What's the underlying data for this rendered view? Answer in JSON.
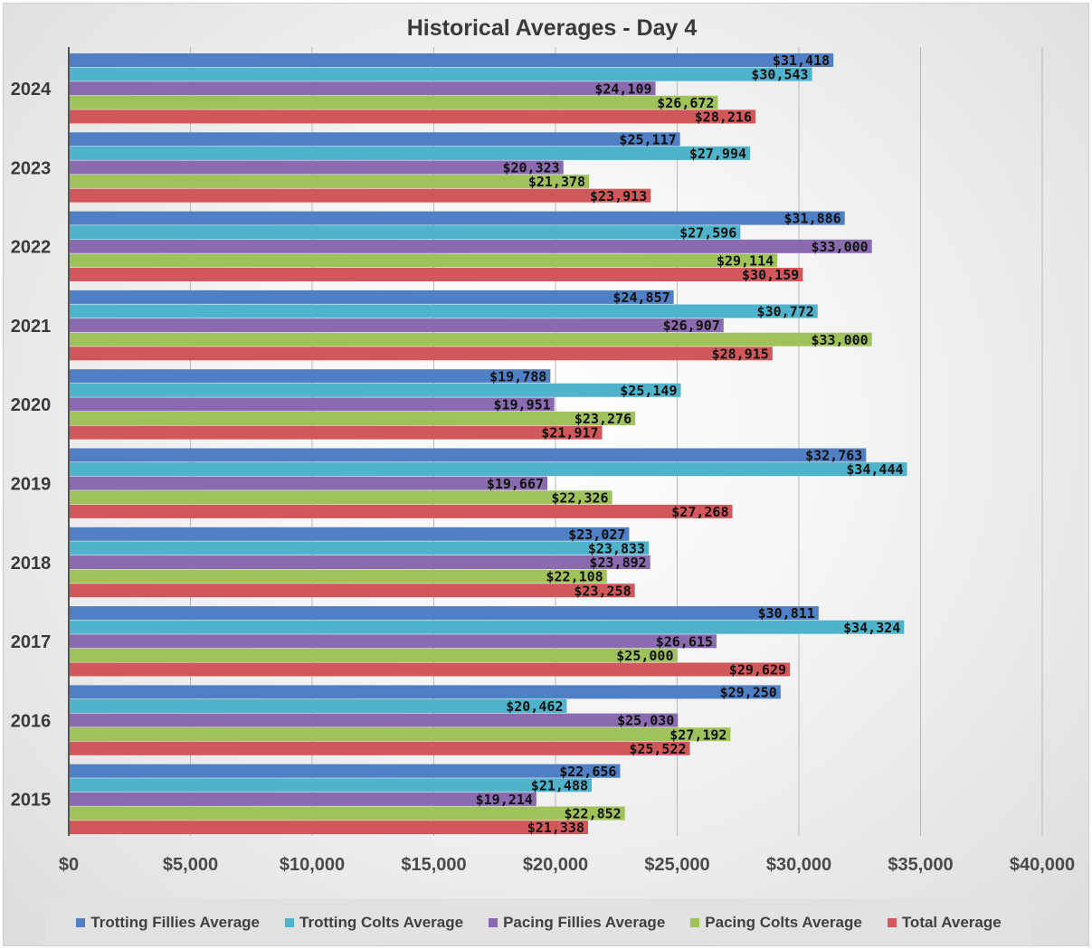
{
  "chart_data": {
    "type": "bar",
    "orientation": "horizontal",
    "title": "Historical Averages - Day 4",
    "categories": [
      "2024",
      "2023",
      "2022",
      "2021",
      "2020",
      "2019",
      "2018",
      "2017",
      "2016",
      "2015"
    ],
    "series": [
      {
        "name": "Trotting Fillies Average",
        "color": "#4f7fc4",
        "values": [
          31418,
          25117,
          31886,
          24857,
          19788,
          32763,
          23027,
          30811,
          29250,
          22656
        ],
        "labels": [
          "$31,418",
          "$25,117",
          "$31,886",
          "$24,857",
          "$19,788",
          "$32,763",
          "$23,027",
          "$30,811",
          "$29,250",
          "$22,656"
        ]
      },
      {
        "name": "Trotting Colts Average",
        "color": "#4fb3cc",
        "values": [
          30543,
          27994,
          27596,
          30772,
          25149,
          34444,
          23833,
          34324,
          20462,
          21488
        ],
        "labels": [
          "$30,543",
          "$27,994",
          "$27,596",
          "$30,772",
          "$25,149",
          "$34,444",
          "$23,833",
          "$34,324",
          "$20,462",
          "$21,488"
        ]
      },
      {
        "name": "Pacing Fillies Average",
        "color": "#8a6bb0",
        "values": [
          24109,
          20323,
          33000,
          26907,
          19951,
          19667,
          23892,
          26615,
          25030,
          19214
        ],
        "labels": [
          "$24,109",
          "$20,323",
          "$33,000",
          "$26,907",
          "$19,951",
          "$19,667",
          "$23,892",
          "$26,615",
          "$25,030",
          "$19,214"
        ]
      },
      {
        "name": "Pacing Colts Average",
        "color": "#9fc25a",
        "values": [
          26672,
          21378,
          29114,
          33000,
          23276,
          22326,
          22108,
          25000,
          27192,
          22852
        ],
        "labels": [
          "$26,672",
          "$21,378",
          "$29,114",
          "$33,000",
          "$23,276",
          "$22,326",
          "$22,108",
          "$25,000",
          "$27,192",
          "$22,852"
        ]
      },
      {
        "name": "Total Average",
        "color": "#d0585a",
        "values": [
          28216,
          23913,
          30159,
          28915,
          21917,
          27268,
          23258,
          29629,
          25522,
          21338
        ],
        "labels": [
          "$28,216",
          "$23,913",
          "$30,159",
          "$28,915",
          "$21,917",
          "$27,268",
          "$23,258",
          "$29,629",
          "$25,522",
          "$21,338"
        ]
      }
    ],
    "x_ticks": [
      "$0",
      "$5,000",
      "$10,000",
      "$15,000",
      "$20,000",
      "$25,000",
      "$30,000",
      "$35,000",
      "$40,000"
    ],
    "xlim": [
      0,
      40000
    ],
    "grid": "vertical major gridlines",
    "legend_position": "bottom"
  }
}
